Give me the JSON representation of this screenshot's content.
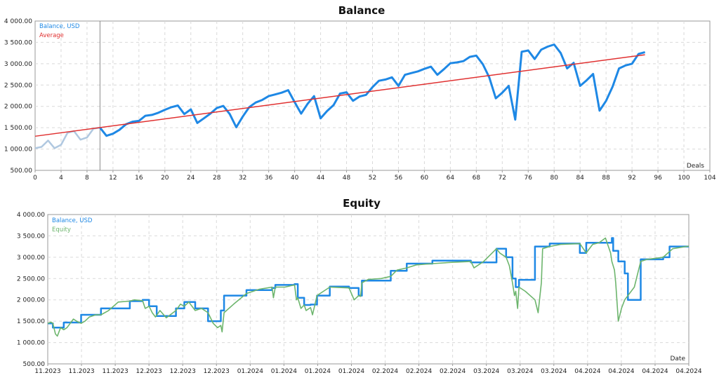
{
  "colors": {
    "balance": "#1e88e5",
    "balance_initial": "#b0c8e0",
    "average": "#e03030",
    "equity": "#6db56d",
    "grid": "#d9d9d9",
    "frame": "#9a9a9a"
  },
  "chart_data": [
    {
      "type": "line",
      "title": "Balance",
      "xlabel": "Deals",
      "ylabel": "",
      "xlim": [
        0,
        104
      ],
      "ylim": [
        500,
        4000
      ],
      "x_ticks": [
        0,
        4,
        8,
        12,
        16,
        20,
        24,
        28,
        32,
        36,
        40,
        44,
        48,
        52,
        56,
        60,
        64,
        68,
        72,
        76,
        80,
        84,
        88,
        92,
        96,
        100,
        104
      ],
      "y_ticks": [
        500,
        1000,
        1500,
        2000,
        2500,
        3000,
        3500,
        4000
      ],
      "y_tick_labels": [
        "500.00",
        "1 000.00",
        "1 500.00",
        "2 000.00",
        "2 500.00",
        "3 000.00",
        "3 500.00",
        "4 000.00"
      ],
      "grid": true,
      "legend": [
        "Balance, USD",
        "Average"
      ],
      "legend_position": "top-left",
      "marker_x": 10,
      "series": [
        {
          "name": "Balance, USD",
          "x": [
            0,
            1,
            2,
            3,
            4,
            5,
            6,
            7,
            8,
            9,
            10,
            11,
            12,
            13,
            14,
            15,
            16,
            17,
            18,
            19,
            20,
            21,
            22,
            23,
            24,
            25,
            26,
            27,
            28,
            29,
            30,
            31,
            32,
            33,
            34,
            35,
            36,
            37,
            38,
            39,
            40,
            41,
            42,
            43,
            44,
            45,
            46,
            47,
            48,
            49,
            50,
            51,
            52,
            53,
            54,
            55,
            56,
            57,
            58,
            59,
            60,
            61,
            62,
            63,
            64,
            65,
            66,
            67,
            68,
            69,
            70,
            71,
            72,
            73,
            74,
            75,
            76,
            77,
            78,
            79,
            80,
            81,
            82,
            83,
            84,
            85,
            86,
            87,
            88,
            89,
            90,
            91,
            92,
            93,
            94
          ],
          "values": [
            1020,
            1050,
            1200,
            1020,
            1100,
            1380,
            1420,
            1220,
            1270,
            1480,
            1500,
            1310,
            1360,
            1450,
            1580,
            1640,
            1660,
            1780,
            1800,
            1850,
            1920,
            1980,
            2020,
            1820,
            1930,
            1610,
            1720,
            1830,
            1960,
            2010,
            1820,
            1510,
            1760,
            1980,
            2090,
            2150,
            2240,
            2280,
            2320,
            2380,
            2100,
            1830,
            2060,
            2240,
            1720,
            1890,
            2030,
            2300,
            2330,
            2130,
            2230,
            2270,
            2450,
            2600,
            2630,
            2680,
            2480,
            2740,
            2780,
            2820,
            2880,
            2930,
            2740,
            2870,
            3010,
            3030,
            3060,
            3160,
            3190,
            2990,
            2680,
            2190,
            2320,
            2480,
            1690,
            3280,
            3310,
            3110,
            3330,
            3400,
            3450,
            3250,
            2890,
            3020,
            2480,
            2610,
            2760,
            1900,
            2130,
            2460,
            2890,
            2960,
            3000,
            3230,
            3270
          ]
        },
        {
          "name": "Average",
          "x": [
            0,
            94
          ],
          "values": [
            1300,
            3210
          ]
        }
      ]
    },
    {
      "type": "line",
      "title": "Equity",
      "xlabel": "Date",
      "ylabel": "",
      "ylim": [
        500,
        4000
      ],
      "y_ticks": [
        500,
        1000,
        1500,
        2000,
        2500,
        3000,
        3500,
        4000
      ],
      "y_tick_labels": [
        "500.00",
        "1 000.00",
        "1 500.00",
        "2 000.00",
        "2 500.00",
        "3 000.00",
        "3 500.00",
        "4 000.00"
      ],
      "x_tick_labels": [
        "11.2023",
        "11.2023",
        "11.2023",
        "12.2023",
        "12.2023",
        "12.2023",
        "01.2024",
        "01.2024",
        "01.2024",
        "01.2024",
        "02.2024",
        "02.2024",
        "02.2024",
        "03.2024",
        "03.2024",
        "03.2024",
        "04.2024",
        "04.2024",
        "04.2024",
        "04.2024"
      ],
      "grid": true,
      "legend": [
        "Balance, USD",
        "Equity"
      ],
      "legend_position": "top-left",
      "x_range": [
        0,
        1000
      ],
      "series": [
        {
          "name": "Balance, USD",
          "x": [
            0,
            8,
            8,
            25,
            25,
            52,
            52,
            83,
            83,
            128,
            128,
            148,
            148,
            158,
            158,
            170,
            170,
            200,
            200,
            213,
            213,
            230,
            230,
            250,
            250,
            270,
            270,
            275,
            275,
            310,
            310,
            350,
            350,
            355,
            355,
            385,
            385,
            390,
            390,
            400,
            400,
            410,
            410,
            420,
            420,
            440,
            440,
            470,
            470,
            485,
            485,
            490,
            490,
            535,
            535,
            560,
            560,
            600,
            600,
            660,
            660,
            700,
            700,
            715,
            715,
            725,
            725,
            730,
            730,
            735,
            735,
            760,
            760,
            783,
            783,
            830,
            830,
            840,
            840,
            880,
            880,
            882,
            882,
            890,
            890,
            900,
            900,
            905,
            905,
            925,
            925,
            960,
            960,
            970,
            970,
            1000
          ],
          "values": [
            1450,
            1450,
            1350,
            1350,
            1470,
            1470,
            1650,
            1650,
            1800,
            1800,
            1970,
            1970,
            2000,
            2000,
            1850,
            1850,
            1620,
            1620,
            1800,
            1800,
            1950,
            1950,
            1800,
            1800,
            1500,
            1500,
            1750,
            1750,
            2100,
            2100,
            2230,
            2230,
            2280,
            2280,
            2350,
            2350,
            2370,
            2370,
            2050,
            2050,
            1880,
            1880,
            1890,
            1890,
            2100,
            2100,
            2310,
            2310,
            2280,
            2280,
            2100,
            2100,
            2450,
            2450,
            2680,
            2680,
            2850,
            2850,
            2920,
            2920,
            2880,
            2880,
            3200,
            3200,
            3000,
            3000,
            2500,
            2500,
            2300,
            2300,
            2470,
            2470,
            3250,
            3250,
            3320,
            3320,
            3100,
            3100,
            3340,
            3340,
            3450,
            3450,
            3150,
            3150,
            2900,
            2900,
            2620,
            2620,
            2000,
            2000,
            2950,
            2950,
            3000,
            3000,
            3250,
            3250
          ]
        },
        {
          "name": "Equity",
          "x": [
            0,
            5,
            8,
            12,
            15,
            20,
            25,
            30,
            35,
            40,
            45,
            52,
            58,
            65,
            75,
            83,
            95,
            110,
            128,
            135,
            148,
            152,
            158,
            163,
            168,
            175,
            185,
            200,
            207,
            213,
            220,
            230,
            240,
            250,
            258,
            265,
            270,
            272,
            275,
            290,
            310,
            330,
            350,
            352,
            355,
            370,
            385,
            388,
            390,
            395,
            400,
            403,
            410,
            413,
            420,
            430,
            440,
            455,
            470,
            478,
            485,
            488,
            490,
            500,
            520,
            535,
            545,
            560,
            575,
            600,
            630,
            660,
            665,
            680,
            700,
            705,
            715,
            720,
            725,
            728,
            730,
            733,
            735,
            745,
            760,
            765,
            770,
            772,
            783,
            800,
            830,
            840,
            850,
            860,
            870,
            878,
            880,
            884,
            886,
            890,
            895,
            900,
            915,
            925,
            935,
            960,
            975,
            1000
          ],
          "values": [
            1450,
            1480,
            1450,
            1200,
            1150,
            1350,
            1300,
            1350,
            1450,
            1550,
            1500,
            1450,
            1500,
            1600,
            1650,
            1650,
            1750,
            1950,
            1970,
            2000,
            1980,
            1800,
            1850,
            1700,
            1600,
            1750,
            1580,
            1750,
            1900,
            1850,
            1950,
            1750,
            1800,
            1700,
            1450,
            1350,
            1400,
            1250,
            1700,
            1900,
            2150,
            2250,
            2300,
            2050,
            2300,
            2300,
            2350,
            2000,
            2050,
            1800,
            1880,
            1750,
            1820,
            1650,
            2100,
            2200,
            2300,
            2290,
            2280,
            2000,
            2100,
            2080,
            2400,
            2480,
            2500,
            2550,
            2700,
            2750,
            2820,
            2850,
            2880,
            2900,
            2750,
            2900,
            3200,
            3100,
            3000,
            2800,
            2400,
            2100,
            2200,
            1800,
            2300,
            2200,
            2000,
            1700,
            2400,
            3200,
            3250,
            3300,
            3320,
            3100,
            3300,
            3340,
            3450,
            3100,
            2900,
            2700,
            2400,
            1500,
            1800,
            2000,
            2300,
            2900,
            2950,
            3000,
            3200,
            3260
          ]
        }
      ]
    }
  ]
}
